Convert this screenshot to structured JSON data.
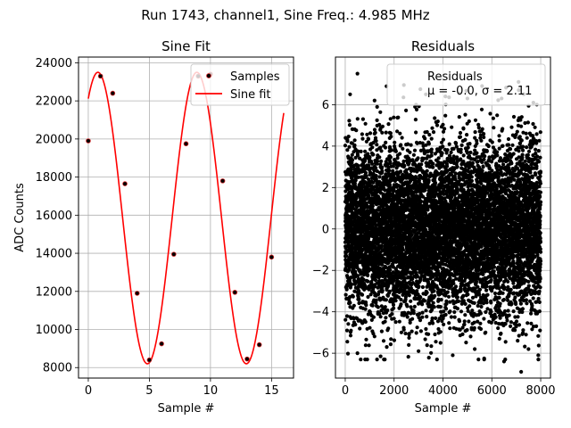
{
  "figure": {
    "suptitle": "Run 1743, channel1, Sine Freq.: 4.985 MHz"
  },
  "chart_data": [
    {
      "type": "line",
      "title": "Sine Fit",
      "xlabel": "Sample #",
      "ylabel": "ADC Counts",
      "xlim": [
        -0.8,
        16.8
      ],
      "ylim": [
        7450,
        24300
      ],
      "xticks": [
        0,
        5,
        10,
        15
      ],
      "yticks": [
        8000,
        10000,
        12000,
        14000,
        16000,
        18000,
        20000,
        22000,
        24000
      ],
      "grid": true,
      "legend_position": "top-right",
      "series": [
        {
          "name": "Samples",
          "kind": "scatter",
          "color": "#000000",
          "edge_color": "#d62728",
          "x": [
            0,
            1,
            2,
            3,
            4,
            5,
            6,
            7,
            8,
            9,
            10,
            11,
            12,
            13,
            14,
            15
          ],
          "y": [
            19900,
            23300,
            22400,
            17650,
            11900,
            8400,
            9250,
            13950,
            19750,
            23300,
            23400,
            17800,
            11950,
            8450,
            9200,
            13800
          ]
        },
        {
          "name": "Sine fit",
          "kind": "line",
          "color": "#ff0000",
          "model": {
            "offset": 15850,
            "amplitude": 7650,
            "period_samples": 8.1,
            "phase": 0.96,
            "x_start": 0,
            "x_end": 16
          }
        }
      ]
    },
    {
      "type": "scatter",
      "title": "Residuals",
      "xlabel": "Sample #",
      "ylabel": "",
      "xlim": [
        -400,
        8400
      ],
      "ylim": [
        -7.2,
        8.3
      ],
      "xticks": [
        0,
        2000,
        4000,
        6000,
        8000
      ],
      "yticks": [
        -6,
        -4,
        -2,
        0,
        2,
        4,
        6
      ],
      "grid": true,
      "legend_position": "top-right",
      "series": [
        {
          "name": "Residuals",
          "color": "#000000",
          "sample_count": 8000,
          "mean": -0.0,
          "std": 2.11,
          "legend_stats": "μ = -0.0, σ = 2.11",
          "outliers": [
            {
              "x": 500,
              "y": 7.5
            },
            {
              "x": 2400,
              "y": 6.95
            },
            {
              "x": 5600,
              "y": 6.9
            },
            {
              "x": 7100,
              "y": 6.7
            },
            {
              "x": 200,
              "y": 6.5
            },
            {
              "x": 3300,
              "y": 6.5
            },
            {
              "x": 4100,
              "y": 6.4
            },
            {
              "x": 6400,
              "y": 6.3
            },
            {
              "x": 1200,
              "y": 6.2
            },
            {
              "x": 7700,
              "y": 6.1
            },
            {
              "x": 2900,
              "y": 6.0
            },
            {
              "x": 5000,
              "y": 6.3
            },
            {
              "x": 7200,
              "y": -6.9
            },
            {
              "x": 500,
              "y": -6.0
            },
            {
              "x": 900,
              "y": -6.3
            },
            {
              "x": 4400,
              "y": -6.1
            },
            {
              "x": 6500,
              "y": -6.4
            },
            {
              "x": 5300,
              "y": -5.8
            },
            {
              "x": 3000,
              "y": -5.9
            },
            {
              "x": 7900,
              "y": -6.1
            },
            {
              "x": 1700,
              "y": -5.7
            },
            {
              "x": 2600,
              "y": -5.6
            },
            {
              "x": 7500,
              "y": -5.8
            },
            {
              "x": 3900,
              "y": -5.5
            }
          ]
        }
      ]
    }
  ]
}
